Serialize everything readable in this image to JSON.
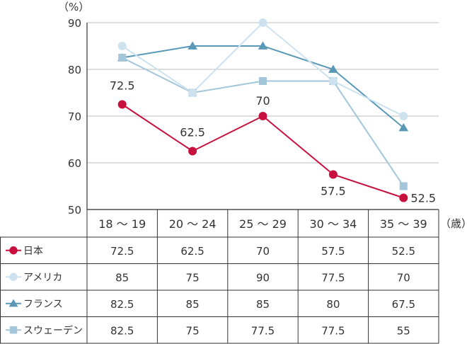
{
  "chart_data": {
    "type": "line",
    "unit_label": "（%）",
    "x_unit_label": "（歳）",
    "categories": [
      "18 〜 19",
      "20 〜 24",
      "25 〜 29",
      "30 〜 34",
      "35 〜 39"
    ],
    "ylim": [
      50,
      90
    ],
    "yticks": [
      "50",
      "60",
      "70",
      "80",
      "90"
    ],
    "grid": true,
    "data_labels_series": "日本",
    "series": [
      {
        "name": "日本",
        "marker": "circle",
        "color": "#c8103e",
        "values": [
          72.5,
          62.5,
          70,
          57.5,
          52.5
        ],
        "labels": [
          "72.5",
          "62.5",
          "70",
          "57.5",
          "52.5"
        ]
      },
      {
        "name": "アメリカ",
        "marker": "circle",
        "color": "#cde2ee",
        "values": [
          85,
          75,
          90,
          77.5,
          70
        ],
        "labels": [
          "85",
          "75",
          "90",
          "77.5",
          "70"
        ]
      },
      {
        "name": "フランス",
        "marker": "triangle",
        "color": "#5a98b8",
        "values": [
          82.5,
          85,
          85,
          80,
          67.5
        ],
        "labels": [
          "82.5",
          "85",
          "85",
          "80",
          "67.5"
        ]
      },
      {
        "name": "スウェーデン",
        "marker": "square",
        "color": "#a3c6da",
        "values": [
          82.5,
          75,
          77.5,
          77.5,
          55
        ],
        "labels": [
          "82.5",
          "75",
          "77.5",
          "77.5",
          "55"
        ]
      }
    ]
  }
}
